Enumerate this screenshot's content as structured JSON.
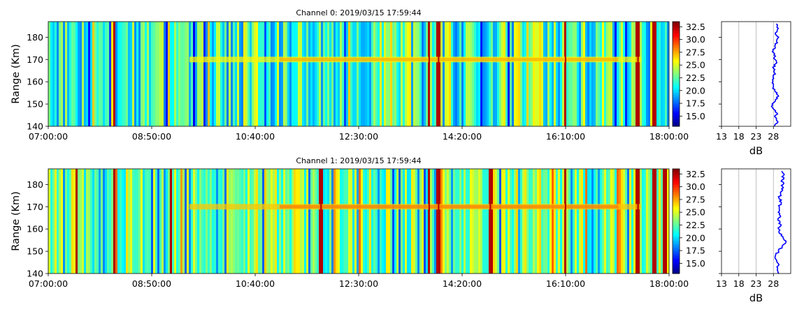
{
  "chart_data": [
    {
      "type": "heatmap",
      "title": "Channel 0: 2019/03/15 17:59:44",
      "ylabel": "Range (Km)",
      "xlabel": "",
      "x_ticks": [
        "07:00:00",
        "08:50:00",
        "10:40:00",
        "12:30:00",
        "14:20:00",
        "16:10:00",
        "18:00:00"
      ],
      "x_range": [
        "07:00:00",
        "18:00:00"
      ],
      "y_ticks": [
        140,
        150,
        160,
        170,
        180
      ],
      "ylim": [
        140,
        187
      ],
      "colorbar": {
        "ticks": [
          "15.0",
          "17.5",
          "20.0",
          "22.5",
          "25.0",
          "27.5",
          "30.0",
          "32.5"
        ],
        "range": [
          13,
          33.5
        ],
        "colormap": "jet"
      },
      "features": {
        "band": {
          "range_km": 170,
          "start": "09:30:00",
          "end": "17:30:00",
          "level_db": 26
        },
        "strong_columns": [
          "08:10:00",
          "13:45:00",
          "13:55:00",
          "16:10:00",
          "17:27:00",
          "17:45:00"
        ]
      },
      "profile": {
        "xlabel": "dB",
        "x_ticks": [
          13,
          18,
          23,
          28
        ],
        "xlim": [
          13,
          33
        ],
        "color": "#0000ff",
        "ranges": [
          140,
          142,
          144,
          146,
          148,
          150,
          152,
          154,
          156,
          158,
          160,
          162,
          164,
          166,
          168,
          170,
          172,
          174,
          176,
          178,
          180,
          182,
          184,
          186
        ],
        "values": [
          28.3,
          29.3,
          28.6,
          29.0,
          27.9,
          27.6,
          28.6,
          29.3,
          28.4,
          28.0,
          27.8,
          27.9,
          28.3,
          28.0,
          28.6,
          28.5,
          28.2,
          27.9,
          28.4,
          28.9,
          29.5,
          28.6,
          29.4,
          28.8
        ]
      }
    },
    {
      "type": "heatmap",
      "title": "Channel 1: 2019/03/15 17:59:44",
      "ylabel": "Range (Km)",
      "xlabel": "",
      "x_ticks": [
        "07:00:00",
        "08:50:00",
        "10:40:00",
        "12:30:00",
        "14:20:00",
        "16:10:00",
        "18:00:00"
      ],
      "x_range": [
        "07:00:00",
        "18:00:00"
      ],
      "y_ticks": [
        140,
        150,
        160,
        170,
        180
      ],
      "ylim": [
        140,
        187
      ],
      "colorbar": {
        "ticks": [
          "15.0",
          "17.5",
          "20.0",
          "22.5",
          "25.0",
          "27.5",
          "30.0",
          "32.5"
        ],
        "range": [
          13,
          33.5
        ],
        "colormap": "jet"
      },
      "features": {
        "band": {
          "range_km": 170,
          "start": "09:30:00",
          "end": "17:30:00",
          "level_db": 27
        },
        "strong_columns": [
          "07:30:00",
          "08:10:00",
          "09:10:00",
          "11:50:00",
          "13:45:00",
          "13:55:00",
          "14:50:00",
          "16:10:00",
          "17:27:00",
          "17:45:00",
          "17:55:00"
        ]
      },
      "profile": {
        "xlabel": "dB",
        "x_ticks": [
          13,
          18,
          23,
          28
        ],
        "xlim": [
          13,
          33
        ],
        "color": "#0000ff",
        "ranges": [
          140,
          142,
          144,
          146,
          148,
          150,
          152,
          154,
          156,
          158,
          160,
          162,
          164,
          166,
          168,
          170,
          172,
          174,
          176,
          178,
          180,
          182,
          184,
          186
        ],
        "values": [
          29.6,
          29.2,
          29.6,
          28.9,
          28.6,
          29.5,
          30.5,
          31.6,
          30.8,
          29.8,
          29.5,
          30.2,
          29.3,
          30.0,
          29.7,
          29.7,
          30.3,
          29.6,
          30.1,
          30.4,
          30.8,
          30.5,
          30.9,
          30.4
        ]
      }
    }
  ]
}
